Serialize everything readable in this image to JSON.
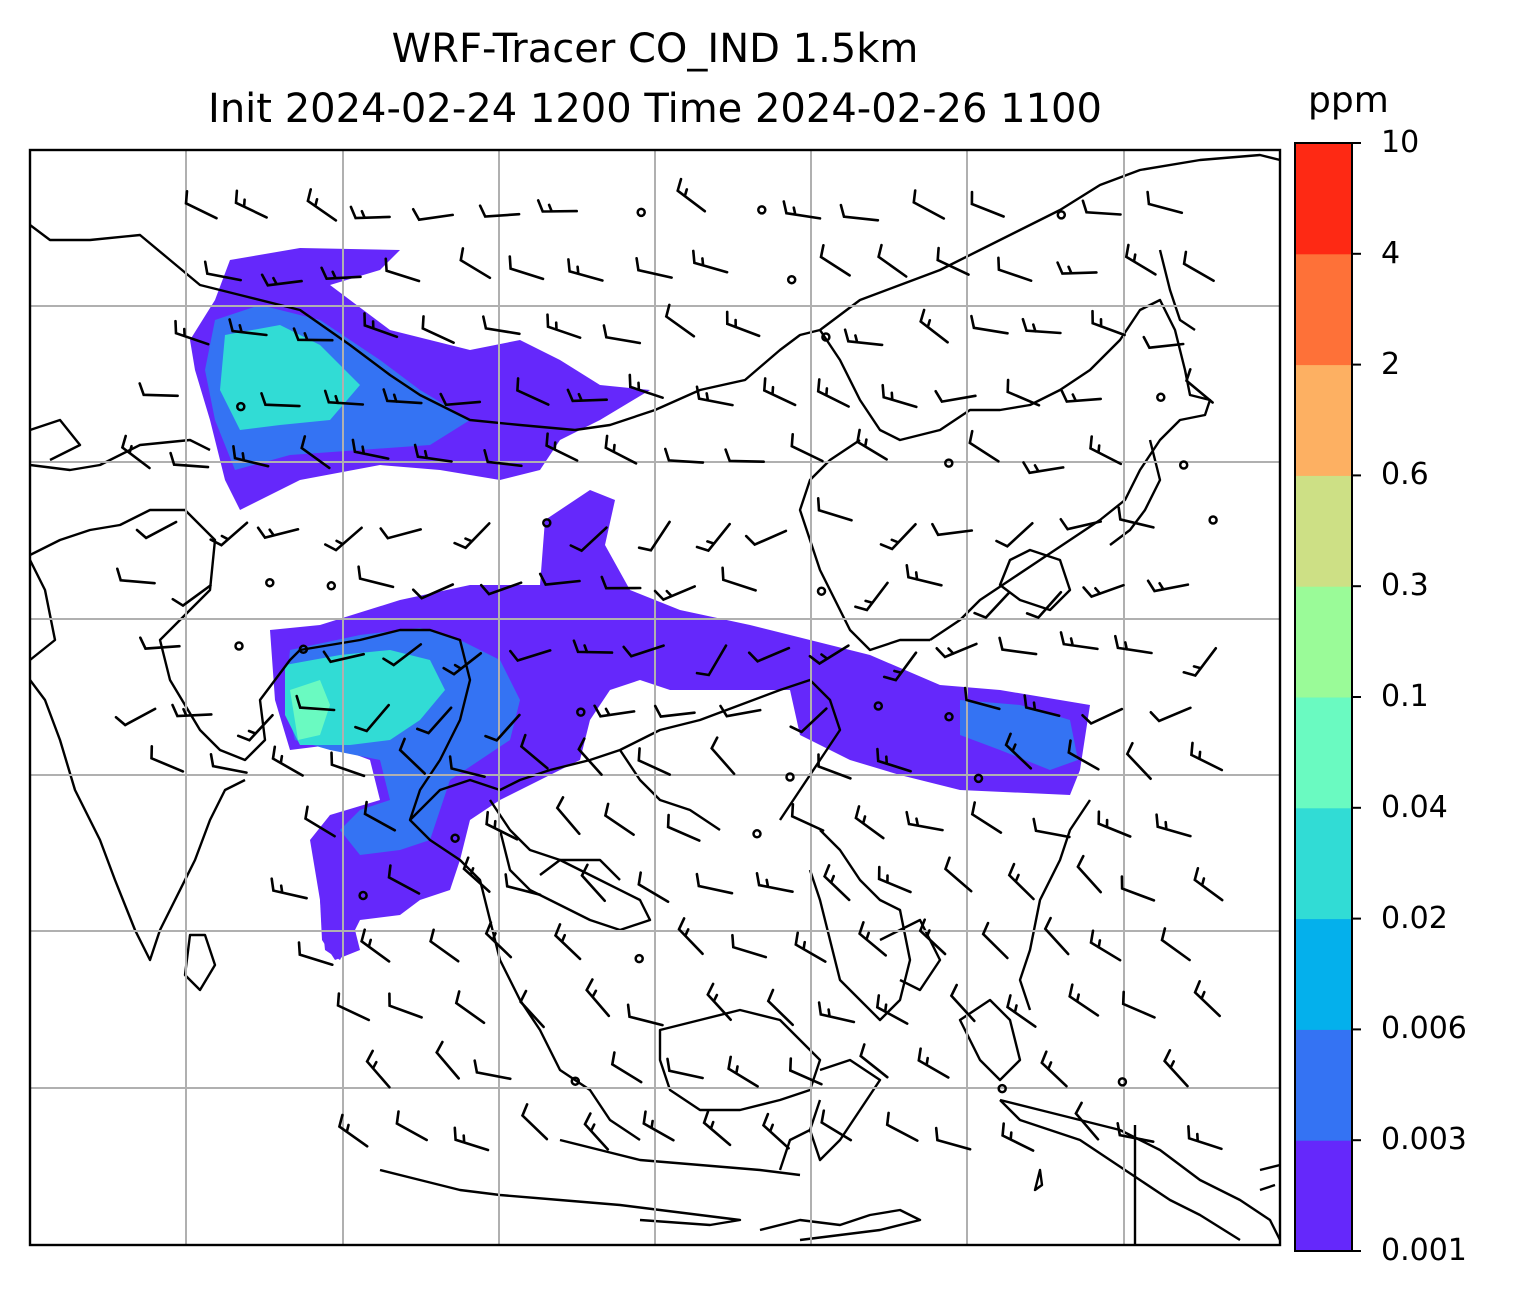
{
  "title": {
    "line1": "WRF-Tracer CO_IND 1.5km",
    "line2": "Init 2024-02-24 1200 Time 2024-02-26 1100"
  },
  "colorbar": {
    "unit": "ppm",
    "levels": [
      "0.001",
      "0.003",
      "0.006",
      "0.02",
      "0.04",
      "0.1",
      "0.3",
      "0.6",
      "2",
      "4",
      "10"
    ],
    "colors": [
      "#6528fb",
      "#3473f3",
      "#04b0ec",
      "#31dcd5",
      "#6afac1",
      "#9afb98",
      "#cde085",
      "#fdb062",
      "#fe7138",
      "#fe2914"
    ]
  },
  "map": {
    "field": "CO_IND tracer concentration at 1.5km with wind barbs",
    "region": "South, East and Southeast Asia",
    "gridlines": true,
    "plume_color_low": "#6528fb",
    "plume_color_mid": "#3473f3",
    "plume_color_high": "#31dcd5"
  }
}
